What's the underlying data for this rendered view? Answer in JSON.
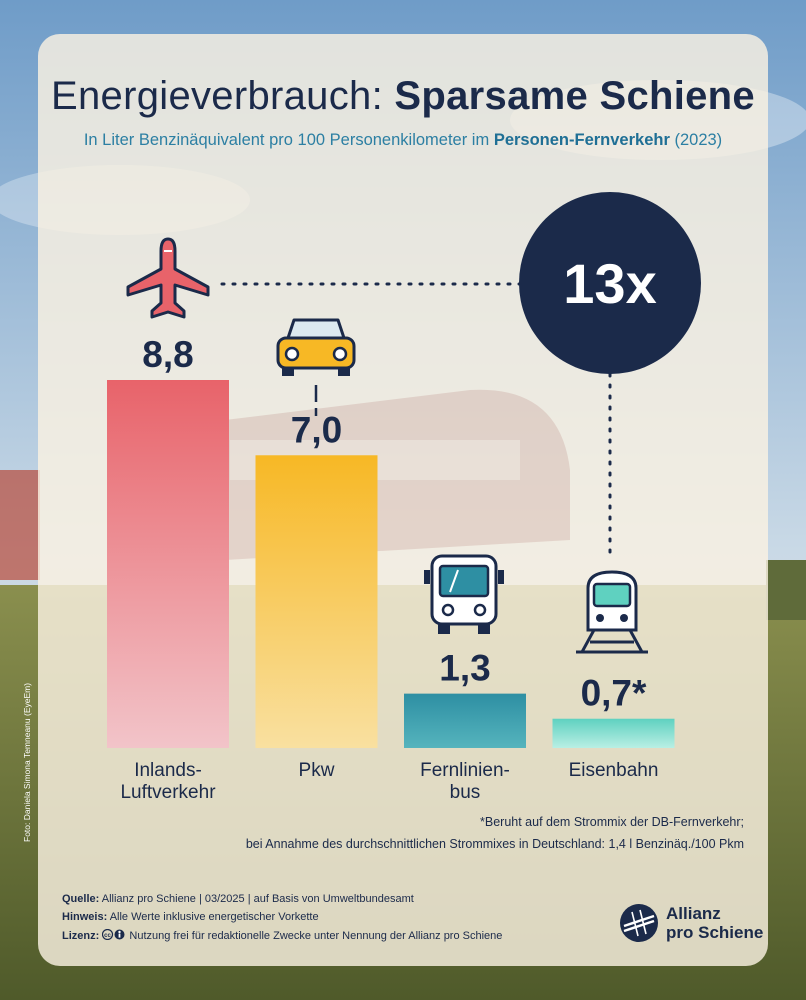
{
  "title_regular": "Energieverbrauch:",
  "title_bold": "Sparsame Schiene",
  "subtitle_pre": "In Liter Benzinäquivalent pro 100 Personenkilometer im",
  "subtitle_bold": "Personen-Fernverkehr",
  "subtitle_post": "(2023)",
  "highlight": "13x",
  "chart_data": {
    "type": "bar",
    "title": "Energieverbrauch: Sparsame Schiene",
    "ylabel": "Liter Benzinäquivalent pro 100 Personenkilometer",
    "ylim": [
      0,
      8.8
    ],
    "categories": [
      [
        "Inlands-",
        "Luftverkehr"
      ],
      [
        "Pkw"
      ],
      [
        "Fernlinien-",
        "bus"
      ],
      [
        "Eisenbahn"
      ]
    ],
    "values": [
      8.8,
      7.0,
      1.3,
      0.7
    ],
    "value_labels": [
      "8,8",
      "7,0",
      "1,3",
      "0,7*"
    ],
    "icons": [
      "airplane-icon",
      "car-icon",
      "bus-icon",
      "train-icon"
    ],
    "colors": [
      [
        "#e8636a",
        "#f2c4c9"
      ],
      [
        "#f7b825",
        "#f9e0a0"
      ],
      [
        "#2e8fa3",
        "#55b4bd"
      ],
      [
        "#5fd1c0",
        "#b9efe4"
      ]
    ]
  },
  "footnote_1": "*Beruht auf dem Strommix der DB-Fernverkehr;",
  "footnote_2": "bei Annahme des durchschnittlichen Strommixes in Deutschland: 1,4 l Benzinäq./100 Pkm",
  "source": {
    "label": "Quelle:",
    "text": "Allianz pro Schiene | 03/2025 | auf Basis von Umweltbundesamt"
  },
  "hint": {
    "label": "Hinweis:",
    "text": "Alle Werte inklusive energetischer Vorkette"
  },
  "license": {
    "label": "Lizenz:",
    "text": "Nutzung frei für redaktionelle Zwecke unter Nennung der Allianz pro Schiene"
  },
  "photo_credit": "Foto: Daniela Simona Temneanu (EyeEm)",
  "logo": {
    "line1": "Allianz",
    "line2": "pro Schiene"
  }
}
